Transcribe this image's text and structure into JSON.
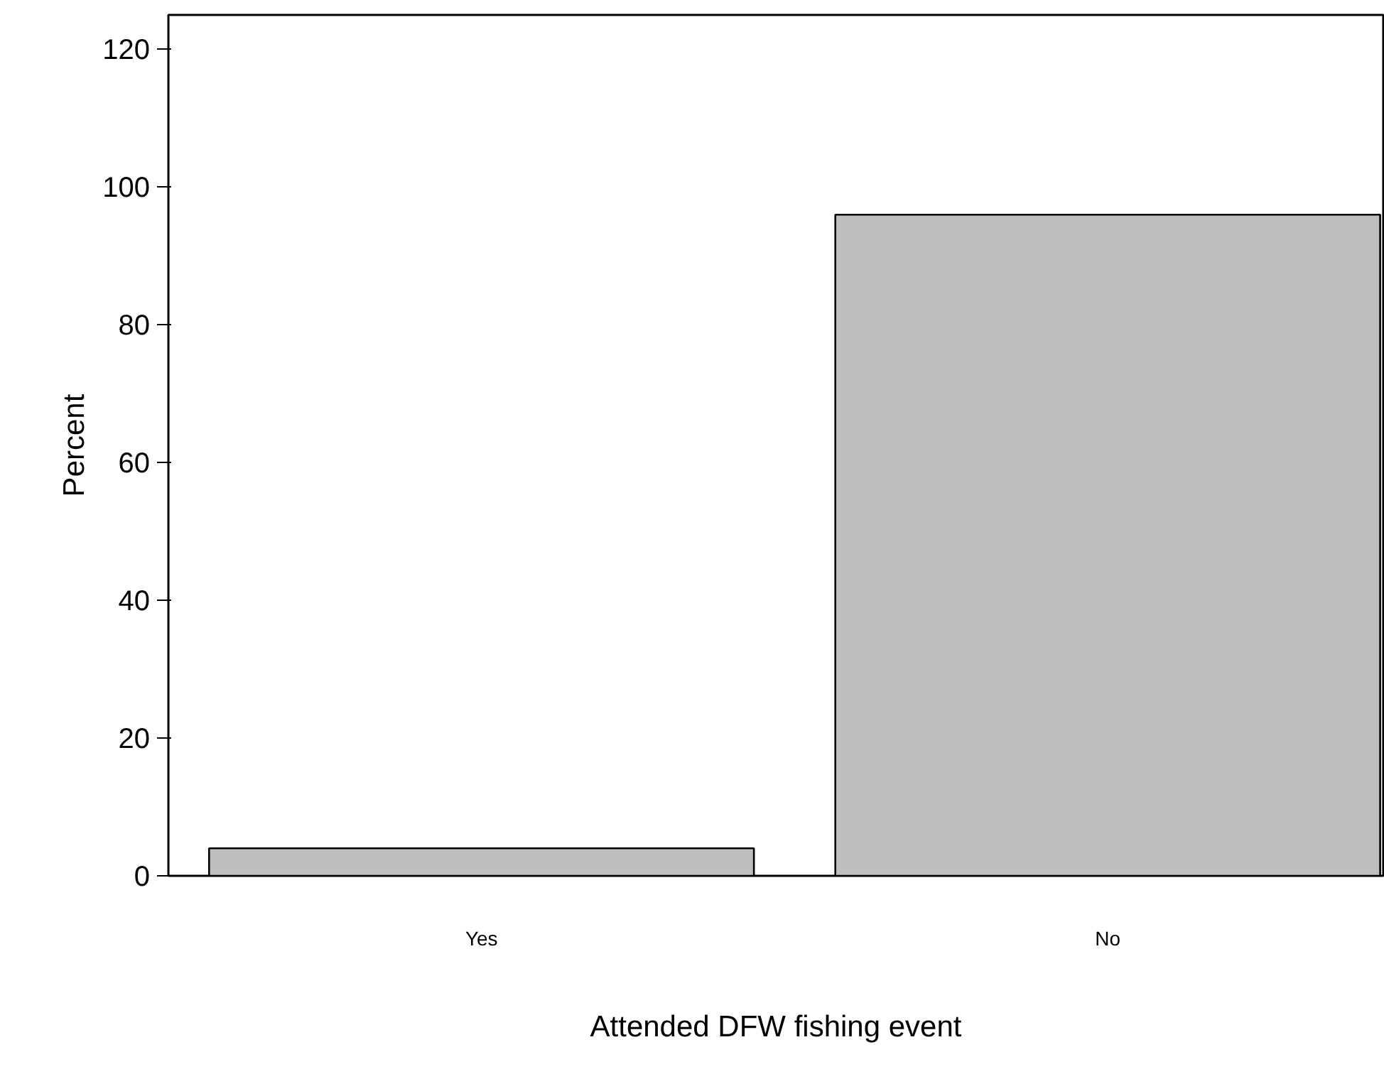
{
  "chart_data": {
    "type": "bar",
    "xlabel": "Attended DFW fishing event",
    "ylabel": "Percent",
    "categories": [
      "Yes",
      "No"
    ],
    "values": [
      4,
      96
    ],
    "color": "#bebebe",
    "ylim": [
      0,
      125
    ],
    "yticks": [
      0,
      20,
      40,
      60,
      80,
      100,
      120
    ],
    "grid": false
  }
}
